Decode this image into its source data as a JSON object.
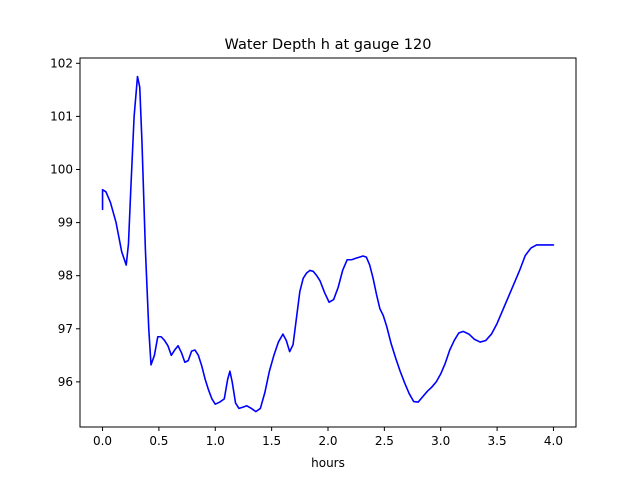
{
  "chart_data": {
    "type": "line",
    "title": "Water Depth h at gauge 120",
    "xlabel": "hours",
    "ylabel": "",
    "xlim": [
      -0.2,
      4.2
    ],
    "ylim": [
      95.15,
      102.1
    ],
    "xticks": [
      0.0,
      0.5,
      1.0,
      1.5,
      2.0,
      2.5,
      3.0,
      3.5,
      4.0
    ],
    "xtick_labels": [
      "0.0",
      "0.5",
      "1.0",
      "1.5",
      "2.0",
      "2.5",
      "3.0",
      "3.5",
      "4.0"
    ],
    "yticks": [
      96,
      97,
      98,
      99,
      100,
      101,
      102
    ],
    "ytick_labels": [
      "96",
      "97",
      "98",
      "99",
      "100",
      "101",
      "102"
    ],
    "grid": false,
    "series": [
      {
        "name": "",
        "color": "#0000ff",
        "x": [
          0.0,
          0.0,
          0.03,
          0.07,
          0.12,
          0.17,
          0.21,
          0.23,
          0.25,
          0.28,
          0.31,
          0.33,
          0.35,
          0.38,
          0.41,
          0.43,
          0.46,
          0.49,
          0.52,
          0.55,
          0.58,
          0.61,
          0.64,
          0.67,
          0.7,
          0.73,
          0.76,
          0.79,
          0.82,
          0.85,
          0.88,
          0.91,
          0.94,
          0.97,
          1.0,
          1.04,
          1.08,
          1.11,
          1.13,
          1.15,
          1.18,
          1.21,
          1.24,
          1.28,
          1.32,
          1.36,
          1.4,
          1.44,
          1.48,
          1.52,
          1.56,
          1.6,
          1.63,
          1.66,
          1.69,
          1.72,
          1.75,
          1.78,
          1.81,
          1.84,
          1.87,
          1.9,
          1.93,
          1.97,
          2.01,
          2.05,
          2.09,
          2.13,
          2.17,
          2.21,
          2.25,
          2.28,
          2.31,
          2.34,
          2.37,
          2.4,
          2.43,
          2.46,
          2.49,
          2.52,
          2.56,
          2.6,
          2.64,
          2.68,
          2.72,
          2.76,
          2.8,
          2.84,
          2.88,
          2.92,
          2.96,
          3.0,
          3.04,
          3.08,
          3.12,
          3.16,
          3.2,
          3.25,
          3.3,
          3.35,
          3.4,
          3.45,
          3.5,
          3.55,
          3.6,
          3.65,
          3.7,
          3.75,
          3.8,
          3.85,
          3.9,
          3.94,
          3.97,
          4.0
        ],
        "y": [
          99.25,
          99.62,
          99.58,
          99.38,
          99.0,
          98.45,
          98.2,
          98.6,
          99.6,
          101.0,
          101.75,
          101.55,
          100.5,
          98.5,
          97.0,
          96.32,
          96.5,
          96.85,
          96.85,
          96.78,
          96.68,
          96.5,
          96.6,
          96.68,
          96.55,
          96.37,
          96.4,
          96.58,
          96.6,
          96.5,
          96.3,
          96.05,
          95.85,
          95.68,
          95.58,
          95.62,
          95.68,
          96.05,
          96.2,
          96.0,
          95.6,
          95.5,
          95.52,
          95.55,
          95.5,
          95.44,
          95.5,
          95.8,
          96.2,
          96.5,
          96.75,
          96.9,
          96.78,
          96.57,
          96.7,
          97.2,
          97.7,
          97.95,
          98.05,
          98.1,
          98.08,
          98.0,
          97.9,
          97.68,
          97.5,
          97.55,
          97.78,
          98.1,
          98.3,
          98.3,
          98.33,
          98.35,
          98.37,
          98.35,
          98.2,
          97.95,
          97.65,
          97.38,
          97.25,
          97.05,
          96.72,
          96.45,
          96.2,
          95.98,
          95.78,
          95.63,
          95.62,
          95.72,
          95.82,
          95.9,
          96.0,
          96.15,
          96.35,
          96.6,
          96.78,
          96.92,
          96.95,
          96.9,
          96.8,
          96.75,
          96.78,
          96.9,
          97.1,
          97.35,
          97.6,
          97.85,
          98.1,
          98.38,
          98.52,
          98.58,
          98.58,
          98.58,
          98.58,
          98.58
        ]
      }
    ]
  }
}
